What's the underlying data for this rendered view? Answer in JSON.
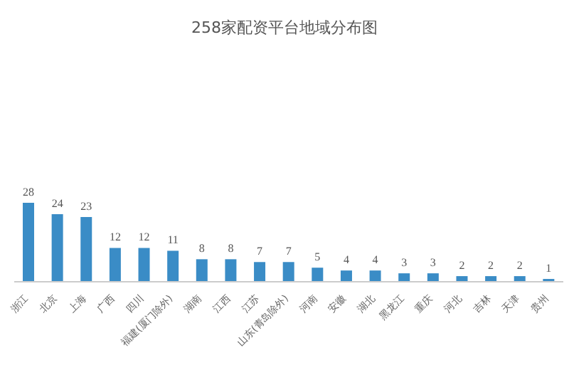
{
  "chart_data": {
    "type": "bar",
    "title": "258家配资平台地域分布图",
    "categories": [
      "浙江",
      "北京",
      "上海",
      "广西",
      "四川",
      "福建(厦门除外)",
      "湖南",
      "江西",
      "江苏",
      "山东(青岛除外)",
      "河南",
      "安徽",
      "湖北",
      "黑龙江",
      "重庆",
      "河北",
      "吉林",
      "天津",
      "贵州"
    ],
    "values": [
      28,
      24,
      23,
      12,
      12,
      11,
      8,
      8,
      7,
      7,
      5,
      4,
      4,
      3,
      3,
      2,
      2,
      2,
      1
    ],
    "color": "#3a8cc6",
    "data_labels": true,
    "tick_labels": "x",
    "ylim": [
      0,
      100
    ]
  }
}
